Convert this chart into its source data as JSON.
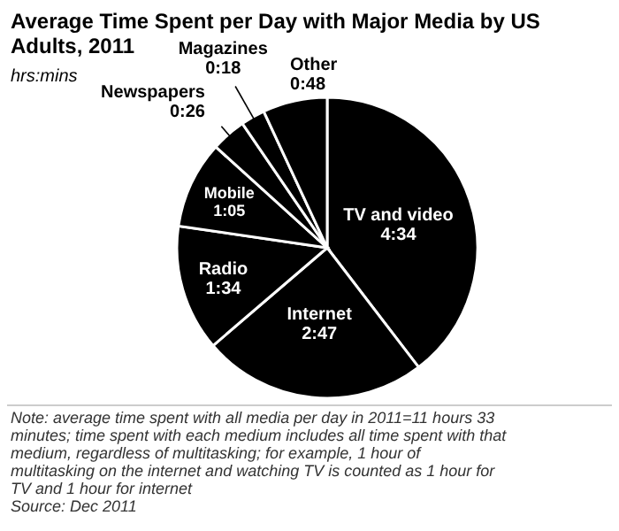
{
  "chart_data": {
    "type": "pie",
    "title": "Average Time Spent per Day with Major Media by US Adults, 2011",
    "subtitle": "hrs:mins",
    "categories": [
      "TV and video",
      "Internet",
      "Radio",
      "Mobile",
      "Newspapers",
      "Magazines",
      "Other"
    ],
    "values": [
      274,
      167,
      94,
      65,
      26,
      18,
      48
    ],
    "value_labels": [
      "4:34",
      "2:47",
      "1:34",
      "1:05",
      "0:26",
      "0:18",
      "0:48"
    ],
    "colors": [
      "#000000",
      "#000000",
      "#000000",
      "#000000",
      "#000000",
      "#000000",
      "#000000"
    ],
    "annotations": [
      "Note: average time spent with all media per day in 2011=11 hours 33 minutes; time spent with each medium includes all time spent with that medium, regardless of multitasking; for example, 1 hour of multitasking on the internet and watching TV is counted as 1 hour for TV and 1 hour for internet",
      "Source: Dec 2011"
    ]
  }
}
